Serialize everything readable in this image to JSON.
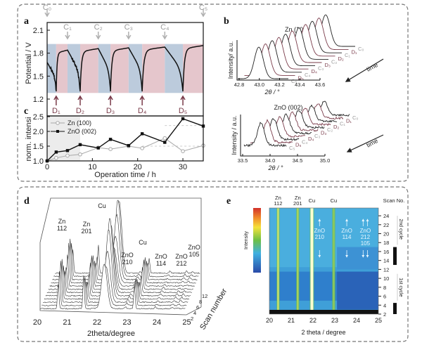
{
  "panels": {
    "a": "a",
    "b": "b",
    "c": "c",
    "d": "d",
    "e": "e"
  },
  "colors": {
    "charge_band": "#e5c6cc",
    "discharge_band": "#bccbdc",
    "trace": "#222222",
    "trace_maroon": "#7a3b4a",
    "c_marker": "#b0b0b0",
    "d_marker": "#7a3b4a"
  },
  "chart_data": [
    {
      "id": "a",
      "type": "line",
      "title": "",
      "xlabel": "Operation time / h",
      "ylabel": "Potential / V",
      "xlim": [
        0,
        34.5
      ],
      "ylim": [
        1.2,
        2.1
      ],
      "yticks": [
        "2.1",
        "1.8",
        "1.5",
        "1.2"
      ],
      "ytick_values": [
        2.1,
        1.8,
        1.5,
        1.2
      ],
      "charge_markers": [
        {
          "label": "C₀",
          "t": 0
        },
        {
          "label": "C₁",
          "t": 4.5
        },
        {
          "label": "C₂",
          "t": 11.3
        },
        {
          "label": "C₃",
          "t": 18
        },
        {
          "label": "C₄",
          "t": 26
        },
        {
          "label": "C₅",
          "t": 34.5
        }
      ],
      "discharge_markers": [
        {
          "label": "D₁",
          "t": 2
        },
        {
          "label": "D₂",
          "t": 7.3
        },
        {
          "label": "D₃",
          "t": 14
        },
        {
          "label": "D₄",
          "t": 21
        },
        {
          "label": "D₅",
          "t": 30
        }
      ],
      "bands": [
        {
          "from": 0,
          "to": 2,
          "kind": "discharge"
        },
        {
          "from": 2,
          "to": 4.5,
          "kind": "charge"
        },
        {
          "from": 4.5,
          "to": 7.3,
          "kind": "discharge"
        },
        {
          "from": 7.3,
          "to": 11.3,
          "kind": "charge"
        },
        {
          "from": 11.3,
          "to": 14,
          "kind": "discharge"
        },
        {
          "from": 14,
          "to": 18,
          "kind": "charge"
        },
        {
          "from": 18,
          "to": 21,
          "kind": "discharge"
        },
        {
          "from": 21,
          "to": 26,
          "kind": "charge"
        },
        {
          "from": 26,
          "to": 30,
          "kind": "discharge"
        },
        {
          "from": 30,
          "to": 34.5,
          "kind": "charge"
        }
      ],
      "band_range_V": [
        1.28,
        1.92
      ],
      "segments": [
        {
          "kind": "discharge",
          "t0": 0,
          "t1": 2,
          "v0": 1.68,
          "v1": 1.3
        },
        {
          "kind": "charge",
          "t0": 2,
          "t1": 4.5,
          "v0": 1.3,
          "v1": 1.84
        },
        {
          "kind": "discharge",
          "t0": 4.5,
          "t1": 7.3,
          "v0": 1.84,
          "v1": 1.3
        },
        {
          "kind": "charge",
          "t0": 7.3,
          "t1": 11.3,
          "v0": 1.3,
          "v1": 1.86
        },
        {
          "kind": "discharge",
          "t0": 11.3,
          "t1": 14,
          "v0": 1.86,
          "v1": 1.3
        },
        {
          "kind": "charge",
          "t0": 14,
          "t1": 18,
          "v0": 1.3,
          "v1": 1.87
        },
        {
          "kind": "discharge",
          "t0": 18,
          "t1": 21,
          "v0": 1.87,
          "v1": 1.3
        },
        {
          "kind": "charge",
          "t0": 21,
          "t1": 26,
          "v0": 1.3,
          "v1": 1.88
        },
        {
          "kind": "discharge",
          "t0": 26,
          "t1": 30,
          "v0": 1.88,
          "v1": 1.3
        },
        {
          "kind": "charge",
          "t0": 30,
          "t1": 34.5,
          "v0": 1.3,
          "v1": 1.9
        }
      ]
    },
    {
      "id": "c",
      "type": "line",
      "xlabel": "Operation time / h",
      "ylabel": "norm. intensi",
      "xlim": [
        0,
        34.5
      ],
      "ylim": [
        1.0,
        2.5
      ],
      "xticks": [
        "0",
        "10",
        "20",
        "30"
      ],
      "xtick_values": [
        0,
        10,
        20,
        30
      ],
      "yticks": [
        "2.5",
        "2.0",
        "1.5",
        "1.0"
      ],
      "ytick_values": [
        2.5,
        2.0,
        1.5,
        1.0
      ],
      "shaded_range": [
        0,
        7.3
      ],
      "x": [
        0,
        2,
        4.5,
        7.3,
        11.3,
        14,
        18,
        21,
        26,
        30,
        34.5
      ],
      "series": [
        {
          "name": "Zn (100)",
          "marker": "open-circle",
          "color": "#a8a8a8",
          "values": [
            1.0,
            1.1,
            1.18,
            1.22,
            1.45,
            1.4,
            1.5,
            1.43,
            1.77,
            1.33,
            1.52
          ]
        },
        {
          "name": "ZnO (002)",
          "marker": "filled-square",
          "color": "#111111",
          "values": [
            1.0,
            1.3,
            1.35,
            1.55,
            1.44,
            1.73,
            1.52,
            1.92,
            1.63,
            2.43,
            2.18
          ]
        }
      ]
    },
    {
      "id": "b-top",
      "type": "line",
      "title": "Zn (100)",
      "xlabel": "2θ / °",
      "ylabel": "Intensity/ a.u.",
      "xlim": [
        42.8,
        43.6
      ],
      "xticks": [
        "42.8",
        "43.0",
        "43.2",
        "43.4",
        "43.6"
      ],
      "peak_position": 43.2,
      "trace_labels": [
        "C₅",
        "D₅",
        "C₄",
        "D₄",
        "C₃",
        "D₃",
        "C₂",
        "D₂",
        "C₁",
        "D₁",
        "C₀"
      ],
      "time_label": "time"
    },
    {
      "id": "b-bottom",
      "type": "line",
      "title": "ZnO (002)",
      "xlabel": "2θ / °",
      "ylabel": "Intensity / a.u.",
      "xlim": [
        33.5,
        35.0
      ],
      "xticks": [
        "33.5",
        "34.0",
        "34.5",
        "35.0"
      ],
      "peak_position": 34.35,
      "trace_labels": [
        "C₅",
        "D₅",
        "C₄",
        "D₄",
        "C₃",
        "D₃",
        "C₂",
        "D₂",
        "C₁",
        "D₁",
        "C₀"
      ],
      "time_label": "time"
    },
    {
      "id": "d",
      "type": "line",
      "xlabel": "2theta/degree",
      "zlabel": "Scan number",
      "xlim": [
        20,
        25
      ],
      "xticks": [
        "20",
        "21",
        "22",
        "23",
        "24",
        "25"
      ],
      "zticks": [
        "2",
        "4",
        "6",
        "8",
        "12"
      ],
      "n_scans": 12,
      "peaks": [
        {
          "label": "Zn 112",
          "pos": 20.7,
          "height": 0.55
        },
        {
          "label": "Zn 201",
          "pos": 21.55,
          "height": 0.45
        },
        {
          "label": "Cu",
          "pos": 22.25,
          "height": 1.0
        },
        {
          "label": "ZnO 210",
          "pos": 22.95,
          "height": 0.04
        },
        {
          "label": "Cu",
          "pos": 23.25,
          "height": 0.35
        },
        {
          "label": "ZnO 114",
          "pos": 23.95,
          "height": 0.03
        },
        {
          "label": "ZnO 212",
          "pos": 24.5,
          "height": 0.03
        },
        {
          "label": "ZnO 105",
          "pos": 24.7,
          "height": 0.03
        }
      ]
    },
    {
      "id": "e",
      "type": "heatmap",
      "xlabel": "2 theta / degree",
      "ylabel": "Scan No.",
      "colorbar_label": "Intensity",
      "xlim": [
        20,
        25
      ],
      "ylim": [
        1.5,
        25
      ],
      "xticks": [
        "20",
        "21",
        "22",
        "23",
        "24",
        "25"
      ],
      "yticks": [
        "2",
        "4",
        "6",
        "8",
        "10",
        "12",
        "14",
        "16",
        "18",
        "20",
        "22",
        "24"
      ],
      "ytick_values": [
        2,
        4,
        6,
        8,
        10,
        12,
        14,
        16,
        18,
        20,
        22,
        24
      ],
      "top_labels": [
        {
          "label": "Zn\n112",
          "pos": 20.4
        },
        {
          "label": "Zn\n201",
          "pos": 21.3
        },
        {
          "label": "Cu",
          "pos": 21.95
        },
        {
          "label": "Cu",
          "pos": 22.95
        }
      ],
      "lines": [
        {
          "pos": 20.4,
          "color": "#c9e36a"
        },
        {
          "pos": 21.3,
          "color": "#a9d25a"
        },
        {
          "pos": 21.95,
          "color": "#fbffd0"
        },
        {
          "pos": 22.95,
          "color": "#8fc85a"
        }
      ],
      "inner_labels": [
        {
          "label": "ZnO 210",
          "pos": 22.3
        },
        {
          "label": "ZnO 114",
          "pos": 23.55
        },
        {
          "label": "ZnO 212 105",
          "pos": 24.4
        }
      ],
      "cycles": [
        {
          "label": "1st cycle",
          "from": 2,
          "to": 11
        },
        {
          "label": "2nd cycle",
          "from": 12,
          "to": 24
        }
      ]
    }
  ],
  "text": {
    "c_legend_zn": "Zn (100)",
    "c_legend_zno": "ZnO (002)",
    "e_labels": {
      "zn112a": "Zn",
      "zn112b": "112",
      "zn201a": "Zn",
      "zn201b": "201",
      "cu1": "Cu",
      "cu2": "Cu",
      "scan": "Scan No.",
      "zno210a": "ZnO",
      "zno210b": "210",
      "zno114a": "ZnO",
      "zno114b": "114",
      "zno212a": "ZnO",
      "zno212b": "212",
      "zno212c": "105",
      "cycle1": "1st cycle",
      "cycle2": "2nd cycle"
    },
    "d_labels": {
      "zn112a": "Zn",
      "zn112b": "112",
      "zn201a": "Zn",
      "zn201b": "201",
      "cu1": "Cu",
      "cu2": "Cu",
      "zno210a": "ZnO",
      "zno210b": "210",
      "zno114a": "ZnO",
      "zno114b": "114",
      "zno212a": "ZnO",
      "zno212b": "212",
      "zno105a": "ZnO",
      "zno105b": "105"
    }
  }
}
